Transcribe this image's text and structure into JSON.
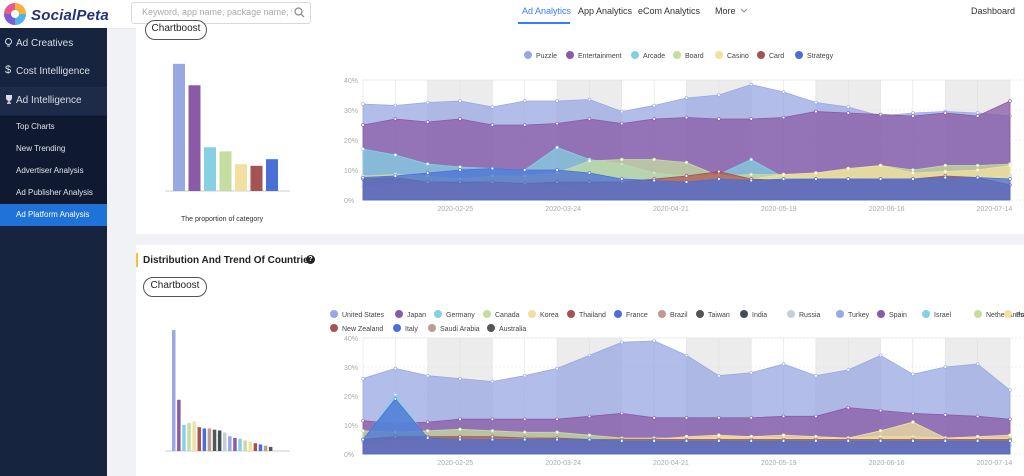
{
  "brand": {
    "logo_text": "SocialPeta"
  },
  "header": {
    "search_placeholder": "Keyword, app name, package name, text",
    "nav": [
      "Ad Analytics",
      "App Analytics",
      "eCom Analytics",
      "More"
    ],
    "dashboard": "Dashboard"
  },
  "sidebar": {
    "items": [
      "Ad Creatives",
      "Cost Intelligence",
      "Ad Intelligence"
    ],
    "sub": [
      "Top Charts",
      "New Trending",
      "Advertiser Analysis",
      "Ad Publisher Analysis",
      "Ad Platform Analysis"
    ]
  },
  "section1": {
    "button": "Chartboost",
    "caption": "The proportion of category",
    "legend": [
      {
        "name": "Puzzle",
        "color": "#98a8e2"
      },
      {
        "name": "Entertainment",
        "color": "#8a5aa6"
      },
      {
        "name": "Arcade",
        "color": "#86d0e3"
      },
      {
        "name": "Board",
        "color": "#c5dda0"
      },
      {
        "name": "Casino",
        "color": "#f2e0a0"
      },
      {
        "name": "Card",
        "color": "#a45252"
      },
      {
        "name": "Strategy",
        "color": "#4a6fd6"
      }
    ]
  },
  "section2": {
    "title": "Distribution And Trend Of Countries",
    "button": "Chartboost",
    "legend": [
      {
        "name": "United States",
        "color": "#98a8e2"
      },
      {
        "name": "Japan",
        "color": "#8a5aa6"
      },
      {
        "name": "Germany",
        "color": "#86d0e3"
      },
      {
        "name": "Canada",
        "color": "#c5dda0"
      },
      {
        "name": "Korea",
        "color": "#f2e0a0"
      },
      {
        "name": "Thailand",
        "color": "#a45252"
      },
      {
        "name": "France",
        "color": "#4a6fd6"
      },
      {
        "name": "Brazil",
        "color": "#bb9c92"
      },
      {
        "name": "Taiwan",
        "color": "#555555"
      },
      {
        "name": "India",
        "color": "#3f4d55"
      },
      {
        "name": "Russia",
        "color": "#c5cfdb"
      },
      {
        "name": "Turkey",
        "color": "#98a8e2"
      },
      {
        "name": "Spain",
        "color": "#8a5aa6"
      },
      {
        "name": "Israel",
        "color": "#86d0e3"
      },
      {
        "name": "Netherlands",
        "color": "#c5dda0"
      },
      {
        "name": "Poland",
        "color": "#f2e0a0"
      },
      {
        "name": "New Zealand",
        "color": "#a45252"
      },
      {
        "name": "Italy",
        "color": "#4a6fd6"
      },
      {
        "name": "Saudi Arabia",
        "color": "#bb9c92"
      },
      {
        "name": "Australia",
        "color": "#555555"
      }
    ]
  },
  "chart_data": [
    {
      "type": "bar",
      "title": "",
      "caption": "The proportion of category",
      "categories": [
        "Puzzle",
        "Entertainment",
        "Arcade",
        "Board",
        "Casino",
        "Card",
        "Strategy"
      ],
      "values": [
        30.8,
        25.6,
        10.6,
        9.6,
        6.5,
        6.1,
        7.7
      ]
    },
    {
      "type": "area",
      "title": "",
      "xlabel": "",
      "ylabel": "",
      "ylim": [
        0,
        40
      ],
      "yticks": [
        "0%",
        "10%",
        "20%",
        "30%",
        "40%"
      ],
      "xticks": [
        "2020-02-25",
        "2020-03-24",
        "2020-04-21",
        "2020-05-19",
        "2020-06-16",
        "2020-07-14"
      ],
      "series": [
        {
          "name": "Puzzle",
          "values": [
            32,
            31.5,
            32.5,
            33,
            31,
            33,
            33,
            33.5,
            29.5,
            31.5,
            34,
            35,
            38.5,
            36,
            32.5,
            31,
            28,
            29,
            29.5,
            29,
            28
          ]
        },
        {
          "name": "Entertainment",
          "values": [
            25,
            27,
            26,
            27,
            25,
            25,
            25.5,
            27,
            25.5,
            27,
            27.5,
            27,
            27,
            27.5,
            29.5,
            29,
            28.5,
            28,
            29,
            28,
            33
          ]
        },
        {
          "name": "Arcade",
          "values": [
            17,
            15,
            12,
            11,
            10.5,
            10,
            17.5,
            13.5,
            12,
            9,
            8,
            8.5,
            13.5,
            7.5,
            7.5,
            8,
            7,
            7,
            7.5,
            8,
            8
          ]
        },
        {
          "name": "Board",
          "values": [
            8,
            8.5,
            8,
            7,
            8,
            8,
            9,
            13,
            13.5,
            13.5,
            12.5,
            8,
            8.5,
            8.5,
            9,
            10,
            11.5,
            10,
            11.5,
            11.5,
            12
          ]
        },
        {
          "name": "Casino",
          "values": [
            4.5,
            5,
            5.5,
            5,
            5.5,
            5.5,
            4.5,
            5,
            6,
            6.5,
            7.5,
            8.5,
            7,
            8.5,
            9,
            10.5,
            11.5,
            9,
            9.5,
            10,
            11.5
          ]
        },
        {
          "name": "Card",
          "values": [
            7,
            7.5,
            6,
            6,
            6,
            5.5,
            6,
            6,
            6,
            7,
            8,
            9.5,
            7,
            6.5,
            7,
            7,
            7,
            7,
            8,
            7.5,
            5
          ]
        },
        {
          "name": "Strategy",
          "values": [
            7.5,
            8,
            9,
            10,
            10.5,
            10,
            10,
            9,
            7,
            6.5,
            6,
            7,
            6.5,
            7,
            7,
            7,
            7,
            7,
            7.5,
            7.5,
            7
          ]
        }
      ]
    },
    {
      "type": "bar",
      "title": "",
      "categories": [
        "United States",
        "Japan",
        "Germany",
        "Canada",
        "Korea",
        "Thailand",
        "France",
        "Brazil",
        "Taiwan",
        "India",
        "Russia",
        "Turkey",
        "Spain",
        "Israel",
        "Netherlands",
        "Poland",
        "New Zealand",
        "Italy",
        "Saudi Arabia",
        "Australia"
      ],
      "values": [
        29.5,
        12.5,
        6.4,
        6.8,
        7.2,
        5.8,
        5.5,
        5.5,
        5.2,
        5,
        4.5,
        3.6,
        3.2,
        3,
        2.6,
        2.3,
        1.9,
        1.6,
        1.3,
        1
      ]
    },
    {
      "type": "area",
      "title": "",
      "xlabel": "",
      "ylabel": "",
      "ylim": [
        0,
        40
      ],
      "yticks": [
        "0%",
        "10%",
        "20%",
        "30%",
        "40%"
      ],
      "xticks": [
        "2020-02-25",
        "2020-03-24",
        "2020-04-21",
        "2020-05-19",
        "2020-06-16",
        "2020-07-14"
      ],
      "series": [
        {
          "name": "United States",
          "values": [
            26,
            29.5,
            27,
            26,
            25,
            27,
            29.5,
            34,
            38.5,
            39,
            34,
            27,
            28,
            31,
            27,
            29,
            34,
            27.5,
            30,
            31,
            22
          ]
        },
        {
          "name": "Japan",
          "values": [
            11.5,
            10.5,
            11,
            12,
            12,
            12,
            12,
            13,
            14,
            12.5,
            12.5,
            12.5,
            12.5,
            13,
            13,
            16,
            15,
            14,
            13.5,
            13,
            12
          ]
        },
        {
          "name": "Germany",
          "values": [
            4,
            20.5,
            5,
            4,
            4,
            3.5,
            3,
            3,
            3,
            3,
            3,
            3,
            3,
            3,
            3,
            3,
            3,
            3,
            3,
            3,
            3
          ]
        },
        {
          "name": "Canada",
          "values": [
            8,
            7.5,
            8,
            8.5,
            8,
            7.5,
            7.5,
            6.5,
            5.5,
            5.5,
            5.5,
            6,
            6,
            5.5,
            5.5,
            5.5,
            6,
            6,
            5.5,
            5.5,
            5.5
          ]
        },
        {
          "name": "Korea",
          "values": [
            4,
            4.5,
            5,
            5,
            5.5,
            5.5,
            5,
            5,
            5,
            5,
            6,
            6.5,
            6,
            6.5,
            6,
            5.5,
            8,
            11,
            5.5,
            6,
            6.5
          ]
        },
        {
          "name": "Thailand",
          "values": [
            5,
            6,
            6,
            6,
            6,
            5.5,
            5.5,
            5,
            5,
            5,
            5,
            5,
            5,
            5,
            5,
            5,
            5,
            5,
            5,
            5,
            5
          ]
        },
        {
          "name": "France",
          "values": [
            5,
            19,
            5.5,
            5,
            5,
            5,
            5,
            5,
            4.5,
            4.5,
            4.5,
            4.5,
            4.5,
            4.5,
            4.5,
            4.5,
            4.5,
            4.5,
            4.5,
            4.5,
            4.5
          ]
        }
      ]
    }
  ]
}
